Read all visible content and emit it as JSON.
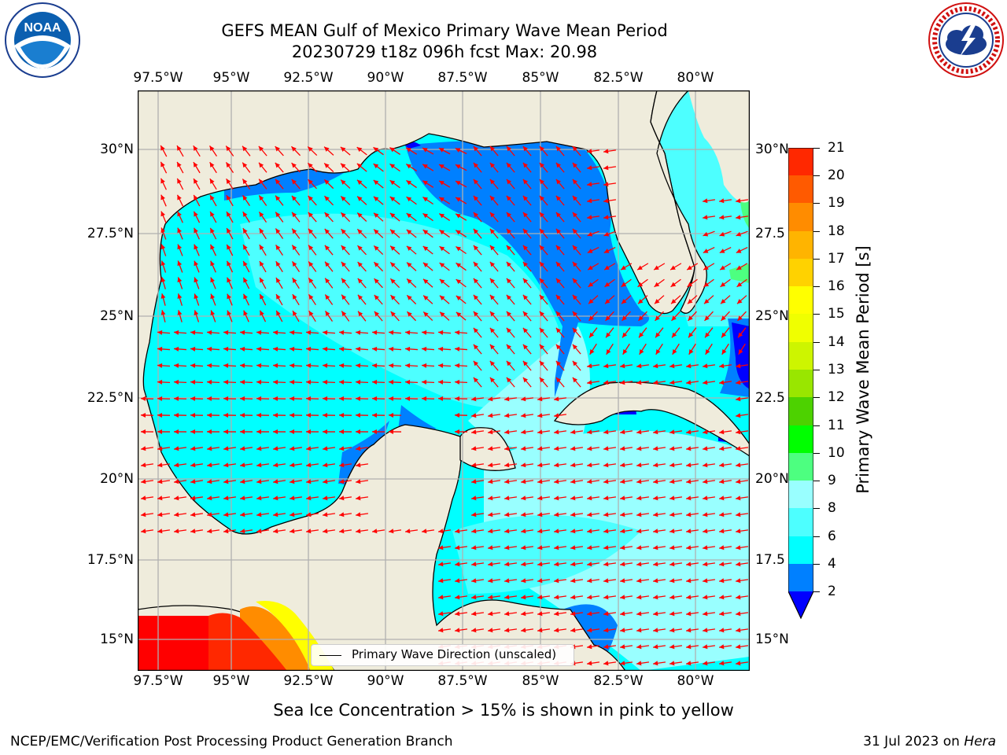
{
  "title": {
    "line1": "GEFS MEAN Gulf of Mexico Primary Wave Mean Period",
    "line2": "20230729 t18z 096h fcst   Max: 20.98"
  },
  "logos": {
    "left": {
      "name": "NOAA",
      "ring_text": "NATIONAL OCEANIC AND ATMOSPHERIC ADMINISTRATION · U.S. DEPARTMENT OF COMMERCE"
    },
    "right": {
      "name": "NATIONAL WEATHER SERVICE"
    }
  },
  "map": {
    "lon_ticks": [
      "97.5°W",
      "95°W",
      "92.5°W",
      "90°W",
      "87.5°W",
      "85°W",
      "82.5°W",
      "80°W"
    ],
    "lat_ticks_left": [
      "30°N",
      "27.5°N",
      "25°N",
      "22.5°N",
      "20°N",
      "17.5°N",
      "15°N"
    ],
    "lat_ticks_right": [
      "30°N",
      "27.5",
      "25°N",
      "22.5",
      "20°N",
      "17.5",
      "15°N"
    ],
    "extent": {
      "lon_min": -98.0,
      "lon_max": -78.3,
      "lat_min": 14.0,
      "lat_max": 31.8
    },
    "grid": true,
    "colors": {
      "land": "#efecdc",
      "coast": "#000000",
      "grid": "#b0b0b0",
      "vector": "#ff0000",
      "ice": "#ff0000"
    },
    "field_regions": [
      {
        "class": "4-6",
        "color": "#00ffff"
      },
      {
        "class": "6-8",
        "color": "#4dffff"
      },
      {
        "class": "8-9",
        "color": "#99ffff"
      },
      {
        "class": "2-4",
        "color": "#0080ff"
      },
      {
        "class": "<2",
        "color": "#0000ff"
      },
      {
        "class": "9-10",
        "color": "#4dff80"
      }
    ]
  },
  "legend": {
    "label": "Primary Wave Direction (unscaled)"
  },
  "colorbar": {
    "label": "Primary Wave Mean Period [s]",
    "ticks": [
      "2",
      "4",
      "6",
      "8",
      "9",
      "10",
      "11",
      "12",
      "13",
      "14",
      "15",
      "16",
      "17",
      "18",
      "19",
      "20",
      "21"
    ],
    "colors": [
      "#0080ff",
      "#00ffff",
      "#4dffff",
      "#99ffff",
      "#4dff80",
      "#00ff00",
      "#4dd200",
      "#99e600",
      "#cdf500",
      "#f0ff00",
      "#ffff00",
      "#ffd200",
      "#ffb400",
      "#ff8c00",
      "#ff5a00",
      "#ff2800"
    ],
    "under_color": "#0000ff"
  },
  "footer": {
    "note": "Sea Ice Concentration > 15% is shown in pink to yellow",
    "left": "NCEP/EMC/Verification Post Processing Product Generation Branch",
    "right_date": "31 Jul 2023 on ",
    "right_host": "Hera"
  }
}
